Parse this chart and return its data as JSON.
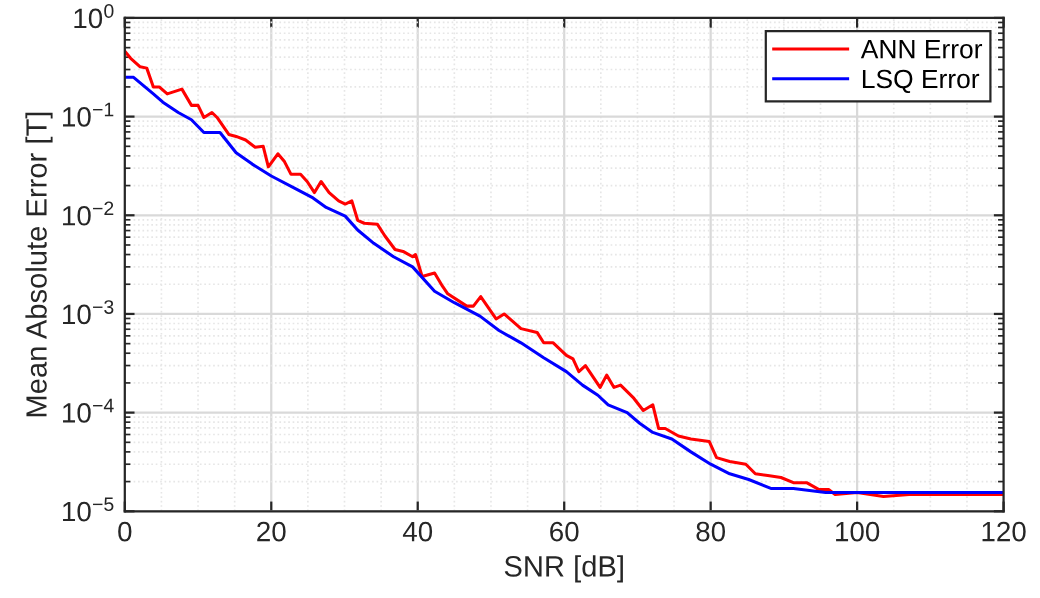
{
  "chart_data": {
    "type": "line",
    "xlabel": "SNR [dB]",
    "ylabel": "Mean Absolute Error [T]",
    "log": "y",
    "grid": true,
    "legend": "top right",
    "line_style": "solid",
    "marker": "none",
    "xlim": [
      0,
      120
    ],
    "xticks": [
      0,
      20,
      40,
      60,
      80,
      100,
      120
    ],
    "ylim": [
      1e-05,
      1
    ],
    "yticks": [
      {
        "value": 1e-05,
        "label": "10$^{−5}$"
      },
      {
        "value": 0.0001,
        "label": "10$^{−4}$"
      },
      {
        "value": 0.001,
        "label": "10$^{−3}$"
      },
      {
        "value": 0.01,
        "label": "10$^{−2}$"
      },
      {
        "value": 0.1,
        "label": "10$^{−1}$"
      },
      {
        "value": 1,
        "label": "10$^{0}$"
      }
    ],
    "series": [
      {
        "name": "ANN Error",
        "color": "#ff0000",
        "x": [
          0,
          0.8,
          2.1,
          3,
          3.9,
          4.7,
          5.8,
          7.8,
          9.1,
          10,
          10.8,
          11.9,
          12.6,
          14.2,
          15.2,
          16.5,
          17.8,
          18.9,
          19.6,
          20.9,
          21.8,
          22.7,
          24,
          24.9,
          25.9,
          26.8,
          27.9,
          29.2,
          30.1,
          31,
          31.8,
          32.7,
          34.5,
          35.5,
          36.9,
          38,
          39.3,
          39.7,
          40.6,
          42.3,
          43.4,
          44.1,
          46.7,
          47.6,
          48.6,
          50.7,
          51.8,
          54.1,
          56.3,
          57.2,
          58.5,
          60.3,
          61.2,
          62,
          62.9,
          64.9,
          65.8,
          66.8,
          67.7,
          69.5,
          70.8,
          72.1,
          72.9,
          73.8,
          75.6,
          77.3,
          79.8,
          80.8,
          82.6,
          84.8,
          86.1,
          87.8,
          89.6,
          91.3,
          93.1,
          94.8,
          96.1,
          97,
          100,
          103.6,
          107.1,
          120
        ],
        "values": [
          0.46,
          0.39,
          0.32,
          0.31,
          0.2,
          0.2,
          0.17,
          0.19,
          0.13,
          0.13,
          0.098,
          0.11,
          0.098,
          0.066,
          0.063,
          0.058,
          0.049,
          0.05,
          0.031,
          0.042,
          0.035,
          0.026,
          0.026,
          0.022,
          0.017,
          0.022,
          0.017,
          0.014,
          0.013,
          0.014,
          0.0089,
          0.0083,
          0.0081,
          0.0062,
          0.0045,
          0.0043,
          0.0038,
          0.004,
          0.0024,
          0.0026,
          0.0019,
          0.0016,
          0.0012,
          0.0012,
          0.0015,
          0.00089,
          0.001,
          0.00071,
          0.00065,
          0.00051,
          0.00051,
          0.00038,
          0.00035,
          0.00026,
          0.0003,
          0.00018,
          0.00024,
          0.00018,
          0.00019,
          0.00014,
          0.000105,
          0.00012,
          6.9e-05,
          6.9e-05,
          5.8e-05,
          5.4e-05,
          5.1e-05,
          3.5e-05,
          3.2e-05,
          3e-05,
          2.4e-05,
          2.3e-05,
          2.2e-05,
          1.95e-05,
          1.95e-05,
          1.66e-05,
          1.66e-05,
          1.48e-05,
          1.55e-05,
          1.41e-05,
          1.48e-05,
          1.48e-05
        ]
      },
      {
        "name": "LSQ Error",
        "color": "#0000ff",
        "x": [
          0,
          1.2,
          3.9,
          5.2,
          7.3,
          9.1,
          10.8,
          13,
          15.2,
          17.4,
          20,
          23.1,
          25.7,
          27.5,
          30.1,
          31.8,
          34,
          36.7,
          39.3,
          42.3,
          45,
          48.5,
          51.1,
          54.1,
          57.2,
          60.3,
          62.5,
          64.6,
          66,
          68.6,
          70.3,
          72.1,
          74.7,
          77.3,
          80,
          82.6,
          85.2,
          88.3,
          91.3,
          95.7,
          100,
          120
        ],
        "values": [
          0.25,
          0.25,
          0.17,
          0.14,
          0.11,
          0.093,
          0.069,
          0.069,
          0.043,
          0.033,
          0.025,
          0.019,
          0.015,
          0.012,
          0.0098,
          0.0071,
          0.0052,
          0.0038,
          0.003,
          0.0017,
          0.0013,
          0.00095,
          0.00068,
          0.00051,
          0.00036,
          0.00026,
          0.00019,
          0.00015,
          0.00012,
          0.0001,
          7.8e-05,
          6.3e-05,
          5.4e-05,
          4e-05,
          3e-05,
          2.4e-05,
          2.1e-05,
          1.7e-05,
          1.7e-05,
          1.55e-05,
          1.55e-05,
          1.55e-05
        ]
      }
    ]
  }
}
